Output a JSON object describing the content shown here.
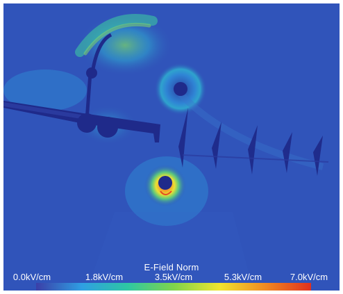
{
  "visualization": {
    "colorbar": {
      "title": "E-Field Norm",
      "ticks": [
        "0.0kV/cm",
        "1.8kV/cm",
        "3.5kV/cm",
        "5.3kV/cm",
        "7.0kV/cm"
      ],
      "colors": [
        "#3b3fa8",
        "#2f9fe3",
        "#2ec7a3",
        "#7fd44b",
        "#f0e52e",
        "#f08a22",
        "#e0301e"
      ]
    },
    "background_color": "#2d4fb6"
  }
}
